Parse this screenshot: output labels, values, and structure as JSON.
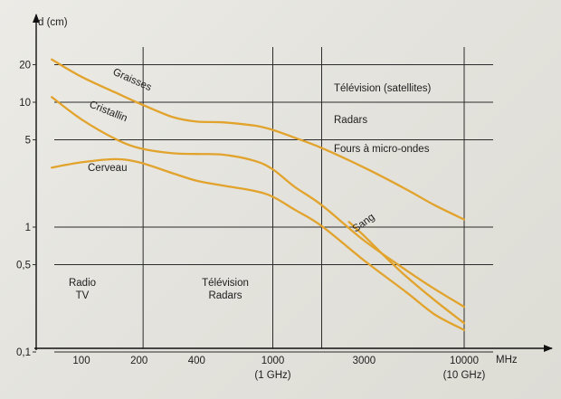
{
  "chart_data": {
    "type": "line",
    "title": "",
    "xlabel": "MHz",
    "ylabel": "d (cm)",
    "x_scale": "log",
    "y_scale": "log",
    "xlim": [
      60,
      12000
    ],
    "ylim": [
      0.1,
      30
    ],
    "grid": true,
    "x_ticks": [
      {
        "value": 100,
        "label": "100",
        "sublabel": ""
      },
      {
        "value": 200,
        "label": "200",
        "sublabel": ""
      },
      {
        "value": 400,
        "label": "400",
        "sublabel": ""
      },
      {
        "value": 1000,
        "label": "1000",
        "sublabel": "(1 GHz)"
      },
      {
        "value": 3000,
        "label": "3000",
        "sublabel": ""
      },
      {
        "value": 10000,
        "label": "10000",
        "sublabel": "(10 GHz)"
      }
    ],
    "x_gridlines": [
      210,
      1000,
      1800,
      10000
    ],
    "y_ticks": [
      {
        "value": 20,
        "label": "20"
      },
      {
        "value": 10,
        "label": "10"
      },
      {
        "value": 5,
        "label": "5"
      },
      {
        "value": 1,
        "label": "1"
      },
      {
        "value": 0.5,
        "label": "0,5"
      },
      {
        "value": 0.1,
        "label": "0,1"
      }
    ],
    "series": [
      {
        "name": "Graisses",
        "x": [
          70,
          100,
          150,
          210,
          300,
          400,
          550,
          800,
          1000,
          1300,
          1800,
          3000,
          5000,
          7000,
          10000
        ],
        "y": [
          22,
          16,
          12,
          9.5,
          7.6,
          7.0,
          6.9,
          6.5,
          6.0,
          5.2,
          4.3,
          3.0,
          2.0,
          1.5,
          1.15
        ]
      },
      {
        "name": "Cristallin",
        "x": [
          70,
          100,
          150,
          200,
          300,
          400,
          550,
          800,
          1000,
          1300,
          1800,
          3000,
          5000,
          7000,
          10000
        ],
        "y": [
          11,
          7.3,
          5.1,
          4.3,
          3.9,
          3.85,
          3.8,
          3.4,
          2.9,
          2.1,
          1.5,
          0.78,
          0.45,
          0.32,
          0.23
        ]
      },
      {
        "name": "Cerveau",
        "x": [
          70,
          100,
          150,
          200,
          300,
          400,
          550,
          800,
          1000,
          1300,
          1800,
          3000,
          5000,
          7000,
          10000
        ],
        "y": [
          3.0,
          3.3,
          3.5,
          3.3,
          2.7,
          2.35,
          2.15,
          1.95,
          1.75,
          1.38,
          1.02,
          0.54,
          0.3,
          0.2,
          0.15
        ]
      },
      {
        "name": "Sang",
        "x": [
          2500,
          3000,
          4000,
          5000,
          7000,
          10000
        ],
        "y": [
          1.1,
          0.85,
          0.55,
          0.4,
          0.26,
          0.17
        ]
      }
    ],
    "annotations": {
      "bands": [
        {
          "text": "Télévision (satellites)"
        },
        {
          "text": "Radars"
        },
        {
          "text": "Fours à micro-ondes"
        }
      ],
      "low": [
        {
          "line1": "Radio",
          "line2": "TV"
        },
        {
          "line1": "Télévision",
          "line2": "Radars"
        }
      ]
    },
    "colors": {
      "curve": "#e2a32c",
      "grid": "#2b2b2b",
      "text": "#1d1d1d"
    }
  }
}
